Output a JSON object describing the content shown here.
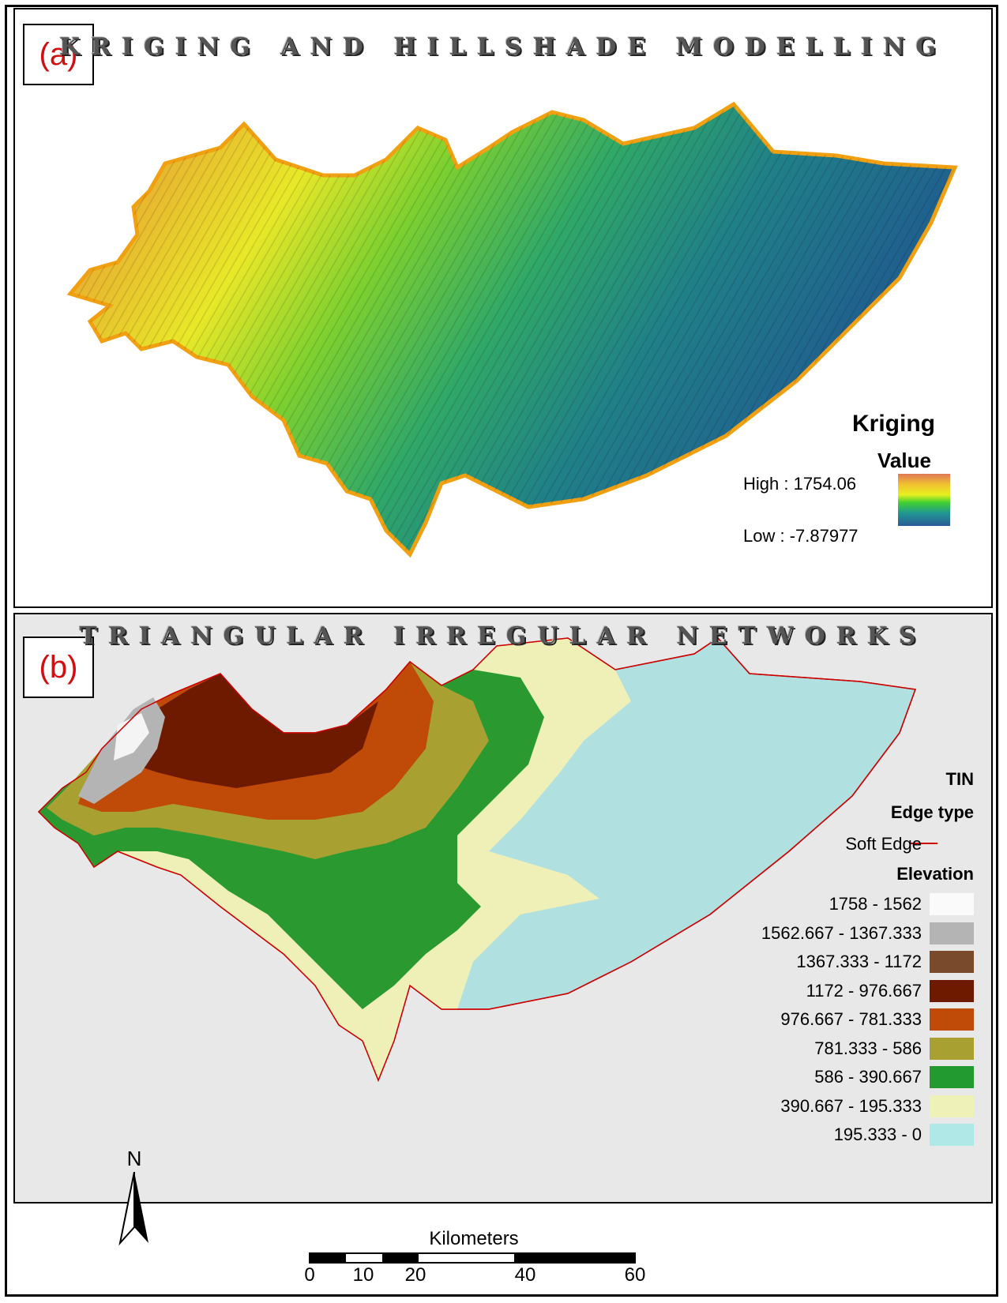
{
  "panel_a": {
    "label": "(a)",
    "title": "KRIGING AND HILLSHADE MODELLING",
    "legend": {
      "title_line1": "Kriging",
      "title_line2": "Value",
      "high_label": "High : 1754.06",
      "low_label": "Low : -7.87977",
      "ramp_colors": [
        "#e0805a",
        "#f0c030",
        "#e8f020",
        "#40d030",
        "#209890",
        "#2060a0"
      ]
    }
  },
  "panel_b": {
    "label": "(b)",
    "title": "TRIANGULAR IRREGULAR NETWORKS",
    "legend": {
      "title": "TIN",
      "edge_heading": "Edge type",
      "edge_label": "Soft Edge",
      "edge_color": "#cc0000",
      "elevation_heading": "Elevation",
      "classes": [
        {
          "label": "1758 - 1562",
          "color": "#fafafa"
        },
        {
          "label": "1562.667 - 1367.333",
          "color": "#b4b4b4"
        },
        {
          "label": "1367.333 - 1172",
          "color": "#7a4a2c"
        },
        {
          "label": "1172 - 976.667",
          "color": "#6e1a00"
        },
        {
          "label": "976.667 - 781.333",
          "color": "#c04a08"
        },
        {
          "label": "781.333 - 586",
          "color": "#a8a030"
        },
        {
          "label": "586 - 390.667",
          "color": "#229a30"
        },
        {
          "label": "390.667 - 195.333",
          "color": "#eef2b8"
        },
        {
          "label": "195.333 - 0",
          "color": "#b0e8e8"
        }
      ]
    }
  },
  "north_arrow": {
    "label": "N"
  },
  "scale_bar": {
    "unit": "Kilometers",
    "ticks": [
      "0",
      "10",
      "20",
      "40",
      "60"
    ]
  }
}
